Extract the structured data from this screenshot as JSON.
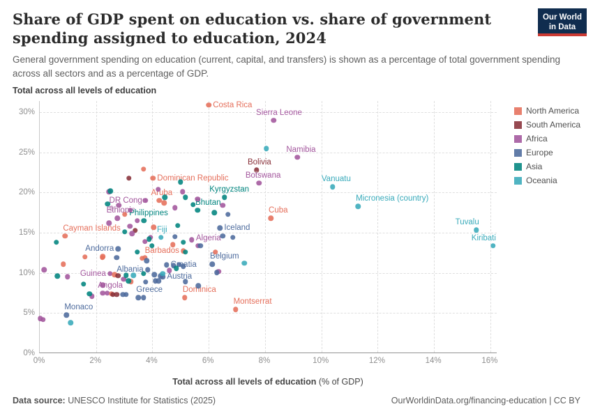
{
  "header": {
    "title": "Share of GDP spent on education vs. share of government spending assigned to education, 2024",
    "subtitle": "General government spending on education (current, capital, and transfers) is shown as a percentage of total government spending across all sectors and as a percentage of GDP.",
    "logo_line1": "Our World",
    "logo_line2": "in Data"
  },
  "chart_data": {
    "type": "scatter",
    "panel_title": "Total across all levels of education",
    "xlabel_bold": "Total across all levels of education",
    "xlabel_normal": " (% of GDP)",
    "xlim": [
      0,
      16.25
    ],
    "ylim": [
      0,
      31.4
    ],
    "grid": true,
    "x_ticks": [
      {
        "v": 0,
        "t": "0%"
      },
      {
        "v": 2,
        "t": "2%"
      },
      {
        "v": 4,
        "t": "4%"
      },
      {
        "v": 6,
        "t": "6%"
      },
      {
        "v": 8,
        "t": "8%"
      },
      {
        "v": 10,
        "t": "10%"
      },
      {
        "v": 12,
        "t": "12%"
      },
      {
        "v": 14,
        "t": "14%"
      },
      {
        "v": 16,
        "t": "16%"
      }
    ],
    "y_ticks": [
      {
        "v": 0,
        "t": "0%"
      },
      {
        "v": 5,
        "t": "5%"
      },
      {
        "v": 10,
        "t": "10%"
      },
      {
        "v": 15,
        "t": "15%"
      },
      {
        "v": 20,
        "t": "20%"
      },
      {
        "v": 25,
        "t": "25%"
      },
      {
        "v": 30,
        "t": "30%"
      }
    ],
    "colors": {
      "NA": "#E56E5A",
      "SA": "#883039",
      "AF": "#A2559C",
      "EU": "#4C6A9C",
      "AS": "#00847E",
      "OC": "#38AABA"
    },
    "legend": [
      {
        "key": "NA",
        "label": "North America"
      },
      {
        "key": "SA",
        "label": "South America"
      },
      {
        "key": "AF",
        "label": "Africa"
      },
      {
        "key": "EU",
        "label": "Europe"
      },
      {
        "key": "AS",
        "label": "Asia"
      },
      {
        "key": "OC",
        "label": "Oceania"
      }
    ],
    "points": [
      {
        "x": 6.0,
        "y": 30.9,
        "c": "NA",
        "label": "Costa Rica",
        "a": "right"
      },
      {
        "x": 8.3,
        "y": 29.0,
        "c": "AF",
        "label": "Sierra Leone",
        "a": "above"
      },
      {
        "x": 9.15,
        "y": 24.4,
        "c": "AF",
        "label": "Namibia",
        "a": "above"
      },
      {
        "x": 7.7,
        "y": 22.8,
        "c": "SA",
        "label": "Bolivia",
        "a": "above"
      },
      {
        "x": 7.78,
        "y": 21.2,
        "c": "AF",
        "label": "Botswana",
        "a": "above"
      },
      {
        "x": 10.4,
        "y": 20.7,
        "c": "OC",
        "label": "Vanuatu",
        "a": "above"
      },
      {
        "x": 11.3,
        "y": 18.3,
        "c": "OC",
        "label": "Micronesia (country)",
        "a": "above-right"
      },
      {
        "x": 4.02,
        "y": 21.8,
        "c": "NA",
        "label": "Dominican Republic",
        "a": "right"
      },
      {
        "x": 6.56,
        "y": 19.4,
        "c": "AS",
        "label": "Kyrgyzstan",
        "a": "above"
      },
      {
        "x": 4.24,
        "y": 19.0,
        "c": "NA",
        "label": "Aruba",
        "a": "above"
      },
      {
        "x": 2.54,
        "y": 18.0,
        "c": "AF",
        "label": "DR Congo",
        "a": "above-right"
      },
      {
        "x": 5.6,
        "y": 17.8,
        "c": "AS",
        "label": "Bhutan",
        "a": "above-right"
      },
      {
        "x": 2.76,
        "y": 16.8,
        "c": "AF",
        "label": "Ethiopia",
        "a": "above"
      },
      {
        "x": 3.7,
        "y": 16.5,
        "c": "AS",
        "label": "Philippines",
        "a": "above"
      },
      {
        "x": 8.2,
        "y": 16.8,
        "c": "NA",
        "label": "Cuba",
        "a": "above-right"
      },
      {
        "x": 0.9,
        "y": 14.6,
        "c": "NA",
        "label": "Cayman Islands",
        "a": "above-right"
      },
      {
        "x": 4.3,
        "y": 14.4,
        "c": "OC",
        "label": "Fiji",
        "a": "above"
      },
      {
        "x": 6.4,
        "y": 15.6,
        "c": "EU",
        "label": "Iceland",
        "a": "right"
      },
      {
        "x": 2.78,
        "y": 13.0,
        "c": "EU",
        "label": "Andorra",
        "a": "left"
      },
      {
        "x": 5.62,
        "y": 13.4,
        "c": "AF",
        "label": "Algeria",
        "a": "above-right"
      },
      {
        "x": 5.1,
        "y": 12.75,
        "c": "NA",
        "label": "Barbados",
        "a": "left"
      },
      {
        "x": 6.12,
        "y": 11.1,
        "c": "EU",
        "label": "Belgium",
        "a": "above-right"
      },
      {
        "x": 4.5,
        "y": 11.0,
        "c": "EU",
        "label": "Croatia",
        "a": "right"
      },
      {
        "x": 2.5,
        "y": 9.9,
        "c": "AF",
        "label": "Guinea",
        "a": "left"
      },
      {
        "x": 3.83,
        "y": 10.4,
        "c": "EU",
        "label": "Albania",
        "a": "left"
      },
      {
        "x": 4.37,
        "y": 9.5,
        "c": "EU",
        "label": "Austria",
        "a": "right"
      },
      {
        "x": 2.4,
        "y": 7.5,
        "c": "AF",
        "label": "Angola",
        "a": "above"
      },
      {
        "x": 3.5,
        "y": 6.9,
        "c": "EU",
        "label": "Greece",
        "a": "above-right"
      },
      {
        "x": 5.15,
        "y": 6.9,
        "c": "NA",
        "label": "Dominica",
        "a": "above-right"
      },
      {
        "x": 0.95,
        "y": 4.75,
        "c": "EU",
        "label": "Monaco",
        "a": "above-right"
      },
      {
        "x": 6.95,
        "y": 5.45,
        "c": "NA",
        "label": "Montserrat",
        "a": "above-right"
      },
      {
        "x": 15.5,
        "y": 15.35,
        "c": "OC",
        "label": "Tuvalu",
        "a": "above-left"
      },
      {
        "x": 16.1,
        "y": 13.4,
        "c": "OC",
        "label": "Kiribati",
        "a": "above-left"
      },
      {
        "x": 3.68,
        "y": 22.9,
        "c": "NA"
      },
      {
        "x": 4.41,
        "y": 18.7,
        "c": "NA"
      },
      {
        "x": 3.02,
        "y": 17.3,
        "c": "NA"
      },
      {
        "x": 4.05,
        "y": 15.7,
        "c": "NA"
      },
      {
        "x": 4.73,
        "y": 13.5,
        "c": "NA"
      },
      {
        "x": 1.61,
        "y": 12.0,
        "c": "NA"
      },
      {
        "x": 0.83,
        "y": 11.1,
        "c": "NA"
      },
      {
        "x": 2.22,
        "y": 11.9,
        "c": "NA"
      },
      {
        "x": 2.24,
        "y": 12.05,
        "c": "NA"
      },
      {
        "x": 3.73,
        "y": 11.9,
        "c": "NA"
      },
      {
        "x": 3.63,
        "y": 11.8,
        "c": "NA"
      },
      {
        "x": 6.24,
        "y": 12.6,
        "c": "NA"
      },
      {
        "x": 2.66,
        "y": 9.8,
        "c": "NA"
      },
      {
        "x": 3.24,
        "y": 8.9,
        "c": "NA"
      },
      {
        "x": 2.54,
        "y": 7.4,
        "c": "NA"
      },
      {
        "x": 3.17,
        "y": 21.8,
        "c": "SA"
      },
      {
        "x": 3.39,
        "y": 15.3,
        "c": "SA"
      },
      {
        "x": 2.78,
        "y": 9.65,
        "c": "SA"
      },
      {
        "x": 2.6,
        "y": 7.3,
        "c": "SA"
      },
      {
        "x": 2.73,
        "y": 7.3,
        "c": "SA"
      },
      {
        "x": 4.2,
        "y": 20.4,
        "c": "AF"
      },
      {
        "x": 5.07,
        "y": 20.1,
        "c": "AF"
      },
      {
        "x": 5.61,
        "y": 19.2,
        "c": "AF"
      },
      {
        "x": 4.8,
        "y": 18.1,
        "c": "AF"
      },
      {
        "x": 2.46,
        "y": 20.1,
        "c": "AF"
      },
      {
        "x": 3.76,
        "y": 19.0,
        "c": "AF"
      },
      {
        "x": 2.8,
        "y": 18.4,
        "c": "AF"
      },
      {
        "x": 6.5,
        "y": 18.4,
        "c": "AF"
      },
      {
        "x": 3.22,
        "y": 17.8,
        "c": "AF"
      },
      {
        "x": 3.46,
        "y": 16.5,
        "c": "AF"
      },
      {
        "x": 2.46,
        "y": 16.2,
        "c": "AF"
      },
      {
        "x": 3.2,
        "y": 15.8,
        "c": "AF"
      },
      {
        "x": 3.27,
        "y": 14.9,
        "c": "AF"
      },
      {
        "x": 3.73,
        "y": 13.9,
        "c": "AF"
      },
      {
        "x": 5.39,
        "y": 14.1,
        "c": "AF"
      },
      {
        "x": 3.93,
        "y": 14.4,
        "c": "AF"
      },
      {
        "x": 0.15,
        "y": 10.4,
        "c": "AF"
      },
      {
        "x": 0.98,
        "y": 9.5,
        "c": "AF"
      },
      {
        "x": 2.24,
        "y": 8.5,
        "c": "AF"
      },
      {
        "x": 2.98,
        "y": 9.2,
        "c": "AF"
      },
      {
        "x": 1.85,
        "y": 7.1,
        "c": "AF"
      },
      {
        "x": 2.24,
        "y": 7.5,
        "c": "AF"
      },
      {
        "x": 0.02,
        "y": 4.3,
        "c": "AF"
      },
      {
        "x": 0.12,
        "y": 4.2,
        "c": "AF"
      },
      {
        "x": 4.6,
        "y": 10.3,
        "c": "AF"
      },
      {
        "x": 6.35,
        "y": 10.15,
        "c": "AF"
      },
      {
        "x": 6.68,
        "y": 17.3,
        "c": "EU"
      },
      {
        "x": 4.8,
        "y": 14.5,
        "c": "EU"
      },
      {
        "x": 5.7,
        "y": 13.4,
        "c": "EU"
      },
      {
        "x": 2.73,
        "y": 11.9,
        "c": "EU"
      },
      {
        "x": 3.8,
        "y": 11.5,
        "c": "EU"
      },
      {
        "x": 6.28,
        "y": 10.05,
        "c": "EU"
      },
      {
        "x": 3.76,
        "y": 8.85,
        "c": "EU"
      },
      {
        "x": 4.07,
        "y": 9.8,
        "c": "EU"
      },
      {
        "x": 4.29,
        "y": 9.6,
        "c": "EU"
      },
      {
        "x": 4.1,
        "y": 9.0,
        "c": "EU"
      },
      {
        "x": 4.22,
        "y": 9.0,
        "c": "EU"
      },
      {
        "x": 5.17,
        "y": 8.9,
        "c": "EU"
      },
      {
        "x": 5.63,
        "y": 8.4,
        "c": "EU"
      },
      {
        "x": 2.95,
        "y": 7.3,
        "c": "EU"
      },
      {
        "x": 3.07,
        "y": 7.3,
        "c": "EU"
      },
      {
        "x": 3.68,
        "y": 6.9,
        "c": "EU"
      },
      {
        "x": 4.75,
        "y": 10.9,
        "c": "EU"
      },
      {
        "x": 4.95,
        "y": 11.05,
        "c": "EU"
      },
      {
        "x": 5.1,
        "y": 10.8,
        "c": "EU"
      },
      {
        "x": 6.5,
        "y": 14.6,
        "c": "EU"
      },
      {
        "x": 6.85,
        "y": 14.4,
        "c": "EU"
      },
      {
        "x": 5.0,
        "y": 21.3,
        "c": "AS"
      },
      {
        "x": 2.51,
        "y": 20.2,
        "c": "AS"
      },
      {
        "x": 5.17,
        "y": 19.4,
        "c": "AS"
      },
      {
        "x": 4.44,
        "y": 19.4,
        "c": "AS"
      },
      {
        "x": 5.44,
        "y": 18.5,
        "c": "AS"
      },
      {
        "x": 2.41,
        "y": 18.6,
        "c": "AS"
      },
      {
        "x": 6.2,
        "y": 17.5,
        "c": "AS"
      },
      {
        "x": 4.9,
        "y": 15.9,
        "c": "AS"
      },
      {
        "x": 3.02,
        "y": 15.1,
        "c": "AS"
      },
      {
        "x": 3.88,
        "y": 14.2,
        "c": "AS"
      },
      {
        "x": 5.1,
        "y": 13.8,
        "c": "AS"
      },
      {
        "x": 3.98,
        "y": 13.4,
        "c": "AS"
      },
      {
        "x": 0.59,
        "y": 13.8,
        "c": "AS"
      },
      {
        "x": 3.46,
        "y": 12.6,
        "c": "AS"
      },
      {
        "x": 5.17,
        "y": 12.6,
        "c": "AS"
      },
      {
        "x": 0.63,
        "y": 9.6,
        "c": "AS"
      },
      {
        "x": 1.56,
        "y": 8.6,
        "c": "AS"
      },
      {
        "x": 3.07,
        "y": 9.7,
        "c": "AS"
      },
      {
        "x": 3.15,
        "y": 9.0,
        "c": "AS"
      },
      {
        "x": 3.68,
        "y": 9.9,
        "c": "AS"
      },
      {
        "x": 4.85,
        "y": 10.55,
        "c": "AS"
      },
      {
        "x": 1.76,
        "y": 7.4,
        "c": "AS"
      },
      {
        "x": 8.05,
        "y": 25.5,
        "c": "OC"
      },
      {
        "x": 7.27,
        "y": 11.2,
        "c": "OC"
      },
      {
        "x": 3.32,
        "y": 9.7,
        "c": "OC"
      },
      {
        "x": 4.37,
        "y": 9.9,
        "c": "OC"
      },
      {
        "x": 1.1,
        "y": 3.8,
        "c": "OC"
      }
    ]
  },
  "footer": {
    "source_label": "Data source:",
    "source_text": " UNESCO Institute for Statistics (2025)",
    "right_text": "OurWorldinData.org/financing-education | CC BY"
  }
}
